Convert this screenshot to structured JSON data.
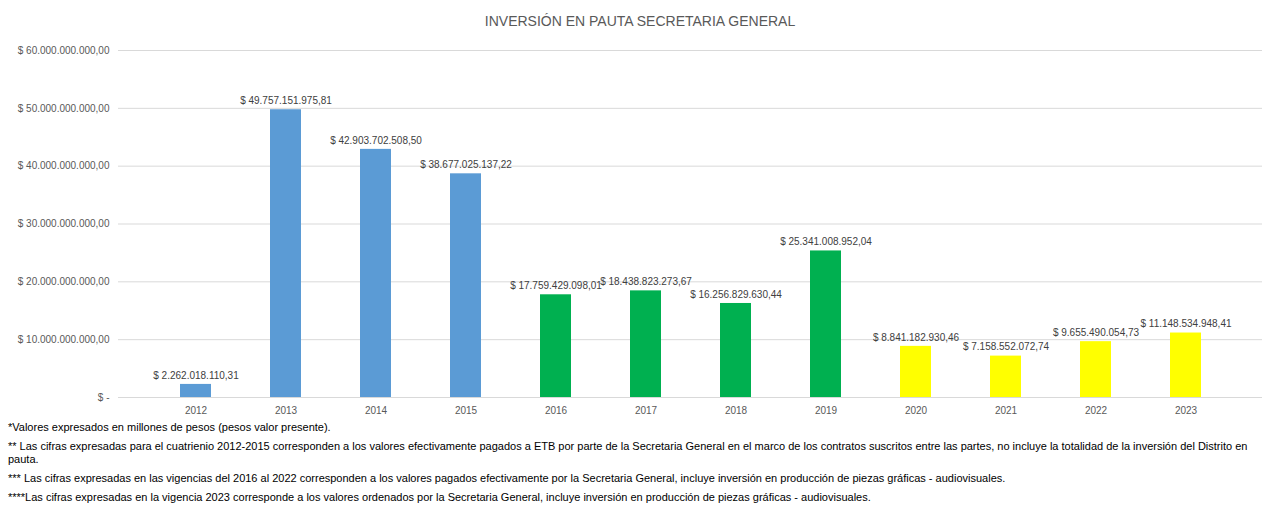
{
  "chart_data": {
    "type": "bar",
    "title": "INVERSIÓN EN PAUTA SECRETARIA GENERAL",
    "categories": [
      "2012",
      "2013",
      "2014",
      "2015",
      "2016",
      "2017",
      "2018",
      "2019",
      "2020",
      "2021",
      "2022",
      "2023"
    ],
    "values": [
      2262018110.31,
      49757151975.81,
      42903702508.5,
      38677025137.22,
      17759429098.01,
      18438823273.67,
      16256829630.44,
      25341008952.04,
      8841182930.46,
      7158552072.74,
      9655490054.73,
      11148534948.41
    ],
    "value_labels": [
      "$ 2.262.018.110,31",
      "$ 49.757.151.975,81",
      "$ 42.903.702.508,50",
      "$ 38.677.025.137,22",
      "$ 17.759.429.098,01",
      "$ 18.438.823.273,67",
      "$ 16.256.829.630,44",
      "$ 25.341.008.952,04",
      "$ 8.841.182.930,46",
      "$ 7.158.552.072,74",
      "$ 9.655.490.054,73",
      "$ 11.148.534.948,41"
    ],
    "colors": [
      "#5b9bd5",
      "#5b9bd5",
      "#5b9bd5",
      "#5b9bd5",
      "#00b050",
      "#00b050",
      "#00b050",
      "#00b050",
      "#ffff00",
      "#ffff00",
      "#ffff00",
      "#ffff00"
    ],
    "data_labels": true,
    "grid": true,
    "ylim": [
      0,
      60000000000
    ],
    "yticks": [
      {
        "value": 0,
        "label": "$ -"
      },
      {
        "value": 10000000000,
        "label": "$ 10.000.000.000,00"
      },
      {
        "value": 20000000000,
        "label": "$ 20.000.000.000,00"
      },
      {
        "value": 30000000000,
        "label": "$ 30.000.000.000,00"
      },
      {
        "value": 40000000000,
        "label": "$ 40.000.000.000,00"
      },
      {
        "value": 50000000000,
        "label": "$ 50.000.000.000,00"
      },
      {
        "value": 60000000000,
        "label": "$ 60.000.000.000,00"
      }
    ],
    "annotations": [
      "*Valores expresados en millones de pesos (pesos valor presente).",
      "** Las cifras expresadas para el cuatrienio 2012-2015 corresponden a los valores efectivamente pagados a ETB por parte de la Secretaria General en el marco de los contratos suscritos entre las partes, no incluye la totalidad de la inversión del Distrito en pauta.",
      "*** Las cifras expresadas en las vigencias del 2016 al 2022 corresponden a los valores pagados efectivamente por la Secretaria General, incluye inversión en producción de piezas gráficas - audiovisuales.",
      "****Las cifras expresadas en la vigencia 2023 corresponde a los valores ordenados por la Secretaria General, incluye inversión en producción de piezas gráficas - audiovisuales."
    ]
  }
}
